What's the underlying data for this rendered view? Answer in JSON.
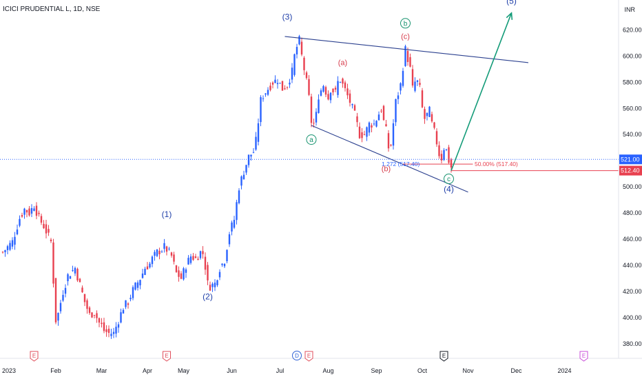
{
  "header": {
    "title": "ICICI PRUDENTIAL L, 1D, NSE",
    "currency": "INR"
  },
  "chart_data": {
    "type": "candlestick",
    "ylim": [
      372,
      635
    ],
    "y_ticks": [
      380,
      400,
      420,
      440,
      460,
      480,
      500,
      520,
      540,
      560,
      580,
      600,
      620
    ],
    "x_ticks": [
      {
        "label": "2023",
        "idx": 0
      },
      {
        "label": "Feb",
        "idx": 22
      },
      {
        "label": "Mar",
        "idx": 41
      },
      {
        "label": "Apr",
        "idx": 60
      },
      {
        "label": "May",
        "idx": 75
      },
      {
        "label": "Jun",
        "idx": 95
      },
      {
        "label": "Jul",
        "idx": 115
      },
      {
        "label": "Aug",
        "idx": 135
      },
      {
        "label": "Sep",
        "idx": 155
      },
      {
        "label": "Oct",
        "idx": 174
      },
      {
        "label": "Nov",
        "idx": 193
      },
      {
        "label": "Dec",
        "idx": 213
      },
      {
        "label": "2024",
        "idx": 233
      }
    ],
    "close_anchors": [
      [
        0,
        450
      ],
      [
        4,
        458
      ],
      [
        7,
        476
      ],
      [
        9,
        483
      ],
      [
        11,
        480
      ],
      [
        13,
        486
      ],
      [
        15,
        476
      ],
      [
        17,
        470
      ],
      [
        20,
        458
      ],
      [
        22,
        398
      ],
      [
        23,
        403
      ],
      [
        25,
        420
      ],
      [
        27,
        432
      ],
      [
        30,
        438
      ],
      [
        32,
        425
      ],
      [
        34,
        412
      ],
      [
        36,
        402
      ],
      [
        38,
        404
      ],
      [
        40,
        396
      ],
      [
        41,
        394
      ],
      [
        42,
        390
      ],
      [
        44,
        388
      ],
      [
        46,
        388
      ],
      [
        48,
        398
      ],
      [
        50,
        408
      ],
      [
        52,
        412
      ],
      [
        54,
        421
      ],
      [
        57,
        430
      ],
      [
        59,
        438
      ],
      [
        61,
        441
      ],
      [
        62,
        445
      ],
      [
        64,
        450
      ],
      [
        66,
        452
      ],
      [
        67,
        454
      ],
      [
        68,
        452
      ],
      [
        70,
        447
      ],
      [
        72,
        434
      ],
      [
        74,
        430
      ],
      [
        76,
        440
      ],
      [
        78,
        447
      ],
      [
        80,
        445
      ],
      [
        82,
        450
      ],
      [
        83,
        449
      ],
      [
        84,
        439
      ],
      [
        85,
        426
      ],
      [
        86,
        424
      ],
      [
        88,
        426
      ],
      [
        90,
        438
      ],
      [
        92,
        444
      ],
      [
        94,
        465
      ],
      [
        96,
        475
      ],
      [
        98,
        500
      ],
      [
        100,
        512
      ],
      [
        102,
        523
      ],
      [
        104,
        527
      ],
      [
        105,
        535
      ],
      [
        106,
        550
      ],
      [
        107,
        566
      ],
      [
        108,
        570
      ],
      [
        110,
        575
      ],
      [
        112,
        580
      ],
      [
        114,
        582
      ],
      [
        116,
        575
      ],
      [
        118,
        578
      ],
      [
        120,
        588
      ],
      [
        121,
        600
      ],
      [
        122,
        607
      ],
      [
        123,
        612
      ],
      [
        124,
        600
      ],
      [
        126,
        580
      ],
      [
        127,
        568
      ],
      [
        128,
        550
      ],
      [
        129,
        548
      ],
      [
        130,
        555
      ],
      [
        131,
        570
      ],
      [
        133,
        578
      ],
      [
        135,
        568
      ],
      [
        136,
        575
      ],
      [
        138,
        572
      ],
      [
        139,
        580
      ],
      [
        140,
        582
      ],
      [
        142,
        574
      ],
      [
        144,
        565
      ],
      [
        146,
        555
      ],
      [
        148,
        540
      ],
      [
        150,
        540
      ],
      [
        152,
        548
      ],
      [
        154,
        548
      ],
      [
        156,
        556
      ],
      [
        157,
        560
      ],
      [
        158,
        550
      ],
      [
        159,
        543
      ],
      [
        160,
        530
      ],
      [
        161,
        532
      ],
      [
        163,
        565
      ],
      [
        165,
        578
      ],
      [
        166,
        592
      ],
      [
        167,
        605
      ],
      [
        168,
        598
      ],
      [
        169,
        590
      ],
      [
        170,
        575
      ],
      [
        171,
        580
      ],
      [
        172,
        580
      ],
      [
        173,
        575
      ],
      [
        174,
        560
      ],
      [
        175,
        552
      ],
      [
        176,
        555
      ],
      [
        177,
        558
      ],
      [
        178,
        548
      ],
      [
        179,
        542
      ],
      [
        180,
        534
      ],
      [
        181,
        525
      ],
      [
        182,
        522
      ],
      [
        183,
        530
      ],
      [
        184,
        528
      ],
      [
        185,
        520
      ],
      [
        186,
        515
      ]
    ],
    "last_price": "512.40",
    "hover_price": "521.00",
    "lines": {
      "upper_trend": {
        "from": [
          117,
          615
        ],
        "to": [
          218,
          595
        ]
      },
      "lower_trend": {
        "from": [
          128,
          547
        ],
        "to": [
          193,
          496
        ]
      },
      "fib_level": {
        "from": [
          166,
          517.4
        ],
        "to": [
          195,
          517.4
        ]
      },
      "target_arrow": {
        "from": [
          186,
          512.4
        ],
        "to": [
          211,
          633
        ]
      }
    },
    "annotations": [
      {
        "text": "(3)",
        "idx": 118,
        "y": 628,
        "style": "blue"
      },
      {
        "text": "(1)",
        "idx": 68,
        "y": 477,
        "style": "blue"
      },
      {
        "text": "(2)",
        "idx": 85,
        "y": 414,
        "style": "blue"
      },
      {
        "text": "(4)",
        "idx": 185,
        "y": 496,
        "style": "blue"
      },
      {
        "text": "(5)",
        "idx": 211,
        "y": 640,
        "style": "blue"
      },
      {
        "text": "(a)",
        "idx": 141,
        "y": 593,
        "style": "red"
      },
      {
        "text": "(b)",
        "idx": 159,
        "y": 512,
        "style": "red"
      },
      {
        "text": "(c)",
        "idx": 167,
        "y": 613,
        "style": "red"
      },
      {
        "text": "a",
        "idx": 128,
        "y": 534,
        "style": "green-circle"
      },
      {
        "text": "b",
        "idx": 167,
        "y": 623,
        "style": "green-circle"
      },
      {
        "text": "c",
        "idx": 185,
        "y": 504,
        "style": "green-circle"
      }
    ],
    "fib_labels": {
      "left": "1.272 (517.40)",
      "right": "50.00% (517.40)"
    },
    "event_markers": [
      {
        "text": "E",
        "idx": 13,
        "color": "#e04e5b"
      },
      {
        "text": "E",
        "idx": 68,
        "color": "#e04e5b"
      },
      {
        "text": "D",
        "idx": 122,
        "color": "#2f62d6"
      },
      {
        "text": "E",
        "idx": 127,
        "color": "#e04e5b"
      },
      {
        "text": "E",
        "idx": 183,
        "color": "#131722"
      },
      {
        "text": "E",
        "idx": 241,
        "color": "#c94ed8"
      }
    ],
    "colors": {
      "up": "#2962ff",
      "down": "#e8404f",
      "trend": "#2a3f8e",
      "arrow": "#139b78",
      "fib": "#e8404f",
      "price_blue": "#2962ff",
      "price_red": "#e8404f"
    }
  }
}
